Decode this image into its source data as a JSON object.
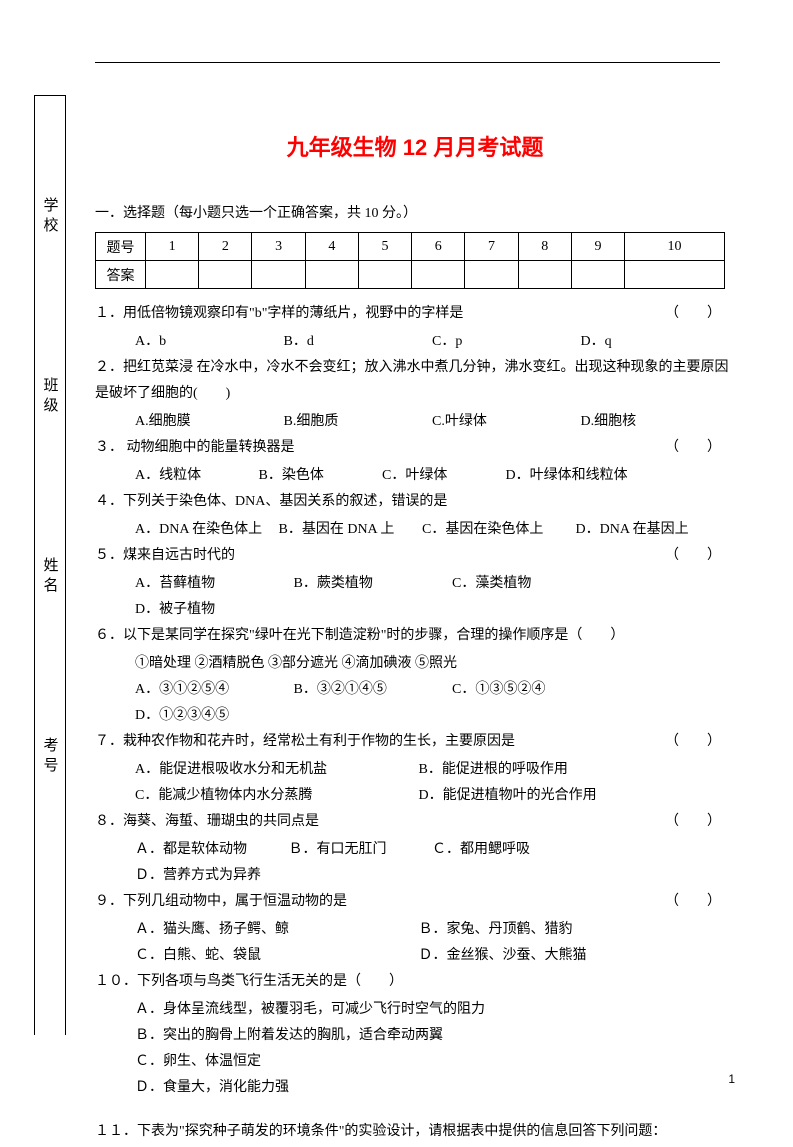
{
  "page": {
    "number": "1",
    "title": "九年级生物 12 月月考试题"
  },
  "side_labels": {
    "school": "学校",
    "class": "班级",
    "name": "姓名",
    "exam_no": "考号"
  },
  "section": {
    "instruction": "一．选择题（每小题只选一个正确答案，共 10 分。）"
  },
  "grid": {
    "row_header_1": "题号",
    "row_header_2": "答案",
    "cols": [
      "1",
      "2",
      "3",
      "4",
      "5",
      "6",
      "7",
      "8",
      "9",
      "10"
    ]
  },
  "q1": {
    "stem": "１．用低倍物镜观察印有\"b\"字样的薄纸片，视野中的字样是",
    "paren": "（　　）",
    "A": "A．b",
    "B": "B．d",
    "C": "C．p",
    "D": "D．q"
  },
  "q2": {
    "stem": "２．把红苋菜浸 在冷水中，冷水不会变红；放入沸水中煮几分钟，沸水变红。出现这种现象的主要原因是破坏了细胞的(　　)",
    "A": "A.细胞膜",
    "B": "B.细胞质",
    "C": "C.叶绿体",
    "D": "D.细胞核"
  },
  "q3": {
    "stem": "３． 动物细胞中的能量转换器是",
    "paren": "（　　）",
    "A": "A．线粒体",
    "B": "B．染色体",
    "C": "C．叶绿体",
    "D": "D．叶绿体和线粒体"
  },
  "q4": {
    "stem": "４．下列关于染色体、DNA、基因关系的叙述，错误的是",
    "A": "A．DNA 在染色体上",
    "B": "B．基因在 DNA 上",
    "C": "C．基因在染色体上",
    "D": "D．DNA 在基因上"
  },
  "q5": {
    "stem": "５．煤来自远古时代的",
    "paren": "（　　）",
    "A": "A．苔藓植物",
    "B": "B．蕨类植物",
    "C": "C．藻类植物",
    "D": "D．被子植物"
  },
  "q6": {
    "stem": "６．以下是某同学在探究\"绿叶在光下制造淀粉\"时的步骤，合理的操作顺序是（　　）",
    "steps": "①暗处理 ②酒精脱色 ③部分遮光 ④滴加碘液 ⑤照光",
    "A": "A．③①②⑤④",
    "B": "B．③②①④⑤",
    "C": "C．①③⑤②④",
    "D": "D．①②③④⑤"
  },
  "q7": {
    "stem": "７．栽种农作物和花卉时，经常松土有利于作物的生长，主要原因是",
    "paren": "（　　）",
    "A": "A．能促进根吸收水分和无机盐",
    "B": "B．能促进根的呼吸作用",
    "C": "C．能减少植物体内水分蒸腾",
    "D": "D．能促进植物叶的光合作用"
  },
  "q8": {
    "stem": "８．海葵、海蜇、珊瑚虫的共同点是",
    "paren": "（　　）",
    "A": "Ａ．都是软体动物",
    "B": "Ｂ．有口无肛门",
    "C": "Ｃ．都用鳃呼吸",
    "D": "Ｄ．营养方式为异养"
  },
  "q9": {
    "stem": "９．下列几组动物中，属于恒温动物的是",
    "paren": "（　　）",
    "A": "Ａ．猫头鹰、扬子鳄、鲸",
    "B": "Ｂ．家兔、丹顶鹤、猎豹",
    "C": "Ｃ．白熊、蛇、袋鼠",
    "D": "Ｄ．金丝猴、沙蚕、大熊猫"
  },
  "q10": {
    "stem": "１０．下列各项与鸟类飞行生活无关的是（　　）",
    "A": "Ａ．身体呈流线型，被覆羽毛，可减少飞行时空气的阻力",
    "B": "Ｂ．突出的胸骨上附着发达的胸肌，适合牵动两翼",
    "C": "Ｃ．卵生、体温恒定",
    "D": "Ｄ．食量大，消化能力强"
  },
  "q11": {
    "stem": "１１．下表为\"探究种子萌发的环境条件\"的实验设计，请根据表中提供的信息回答下列问题："
  }
}
